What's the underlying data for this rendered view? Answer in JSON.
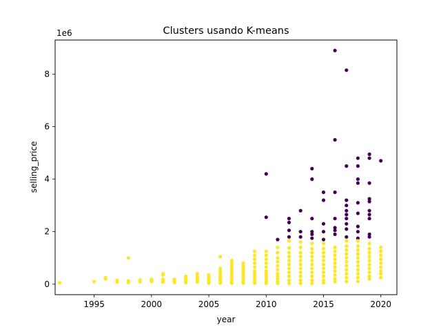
{
  "chart_data": {
    "type": "scatter",
    "title": "Clusters usando K-means",
    "xlabel": "year",
    "ylabel": "selling_price",
    "y_offset_text": "1e6",
    "xlim": [
      1991.6,
      2021.4
    ],
    "ylim": [
      -400000,
      9300000
    ],
    "x_ticks": [
      1995,
      2000,
      2005,
      2010,
      2015,
      2020
    ],
    "y_ticks": [
      0,
      2000000,
      4000000,
      6000000,
      8000000
    ],
    "y_tick_labels": [
      "0",
      "2",
      "4",
      "6",
      "8"
    ],
    "grid": false,
    "series": [
      {
        "color": "#440154",
        "points": [
          [
            2010,
            4200000
          ],
          [
            2010,
            2550000
          ],
          [
            2011,
            1700000
          ],
          [
            2012,
            2500000
          ],
          [
            2012,
            2350000
          ],
          [
            2012,
            2050000
          ],
          [
            2012,
            1800000
          ],
          [
            2013,
            2800000
          ],
          [
            2013,
            2000000
          ],
          [
            2013,
            1800000
          ],
          [
            2014,
            4400000
          ],
          [
            2014,
            4000000
          ],
          [
            2014,
            2500000
          ],
          [
            2014,
            2000000
          ],
          [
            2014,
            1900000
          ],
          [
            2014,
            1750000
          ],
          [
            2015,
            3500000
          ],
          [
            2015,
            3200000
          ],
          [
            2015,
            2300000
          ],
          [
            2015,
            2000000
          ],
          [
            2015,
            1700000
          ],
          [
            2016,
            8900000
          ],
          [
            2016,
            5500000
          ],
          [
            2016,
            3500000
          ],
          [
            2016,
            2500000
          ],
          [
            2016,
            2150000
          ],
          [
            2016,
            2050000
          ],
          [
            2016,
            1900000
          ],
          [
            2017,
            8150000
          ],
          [
            2017,
            4500000
          ],
          [
            2017,
            3200000
          ],
          [
            2017,
            3000000
          ],
          [
            2017,
            2800000
          ],
          [
            2017,
            2650000
          ],
          [
            2017,
            2500000
          ],
          [
            2017,
            2300000
          ],
          [
            2017,
            2100000
          ],
          [
            2017,
            1800000
          ],
          [
            2018,
            4800000
          ],
          [
            2018,
            4500000
          ],
          [
            2018,
            4000000
          ],
          [
            2018,
            3850000
          ],
          [
            2018,
            3100000
          ],
          [
            2018,
            2700000
          ],
          [
            2018,
            2200000
          ],
          [
            2018,
            2000000
          ],
          [
            2018,
            1750000
          ],
          [
            2019,
            4950000
          ],
          [
            2019,
            4800000
          ],
          [
            2019,
            3850000
          ],
          [
            2019,
            3250000
          ],
          [
            2019,
            3150000
          ],
          [
            2019,
            2800000
          ],
          [
            2019,
            2650000
          ],
          [
            2019,
            2500000
          ],
          [
            2019,
            1900000
          ],
          [
            2019,
            1800000
          ],
          [
            2020,
            4700000
          ]
        ]
      },
      {
        "color": "#fde725",
        "points": [
          [
            1992,
            50000
          ],
          [
            1995,
            95000
          ],
          [
            1996,
            250000
          ],
          [
            1996,
            200000
          ],
          [
            1997,
            150000
          ],
          [
            1997,
            80000
          ],
          [
            1998,
            1000000
          ],
          [
            1998,
            120000
          ],
          [
            1998,
            60000
          ],
          [
            1999,
            160000
          ],
          [
            1999,
            90000
          ],
          [
            2000,
            180000
          ],
          [
            2000,
            140000
          ],
          [
            2000,
            100000
          ],
          [
            2001,
            400000
          ],
          [
            2001,
            350000
          ],
          [
            2001,
            180000
          ],
          [
            2001,
            120000
          ],
          [
            2001,
            80000
          ],
          [
            2002,
            180000
          ],
          [
            2002,
            120000
          ],
          [
            2002,
            60000
          ],
          [
            2003,
            300000
          ],
          [
            2003,
            200000
          ],
          [
            2003,
            120000
          ],
          [
            2003,
            60000
          ],
          [
            2004,
            400000
          ],
          [
            2004,
            300000
          ],
          [
            2004,
            220000
          ],
          [
            2004,
            150000
          ],
          [
            2004,
            80000
          ],
          [
            2005,
            350000
          ],
          [
            2005,
            280000
          ],
          [
            2005,
            220000
          ],
          [
            2005,
            160000
          ],
          [
            2005,
            100000
          ],
          [
            2005,
            40000
          ],
          [
            2006,
            1050000
          ],
          [
            2006,
            600000
          ],
          [
            2006,
            500000
          ],
          [
            2006,
            420000
          ],
          [
            2006,
            350000
          ],
          [
            2006,
            280000
          ],
          [
            2006,
            220000
          ],
          [
            2006,
            160000
          ],
          [
            2006,
            100000
          ],
          [
            2006,
            40000
          ],
          [
            2007,
            900000
          ],
          [
            2007,
            800000
          ],
          [
            2007,
            700000
          ],
          [
            2007,
            600000
          ],
          [
            2007,
            500000
          ],
          [
            2007,
            400000
          ],
          [
            2007,
            300000
          ],
          [
            2007,
            200000
          ],
          [
            2007,
            100000
          ],
          [
            2007,
            40000
          ],
          [
            2008,
            800000
          ],
          [
            2008,
            700000
          ],
          [
            2008,
            600000
          ],
          [
            2008,
            500000
          ],
          [
            2008,
            400000
          ],
          [
            2008,
            300000
          ],
          [
            2008,
            200000
          ],
          [
            2008,
            100000
          ],
          [
            2008,
            40000
          ],
          [
            2009,
            1250000
          ],
          [
            2009,
            1100000
          ],
          [
            2009,
            950000
          ],
          [
            2009,
            800000
          ],
          [
            2009,
            650000
          ],
          [
            2009,
            500000
          ],
          [
            2009,
            400000
          ],
          [
            2009,
            300000
          ],
          [
            2009,
            200000
          ],
          [
            2009,
            100000
          ],
          [
            2009,
            40000
          ],
          [
            2010,
            1250000
          ],
          [
            2010,
            1100000
          ],
          [
            2010,
            950000
          ],
          [
            2010,
            800000
          ],
          [
            2010,
            650000
          ],
          [
            2010,
            500000
          ],
          [
            2010,
            400000
          ],
          [
            2010,
            300000
          ],
          [
            2010,
            200000
          ],
          [
            2010,
            100000
          ],
          [
            2010,
            30000
          ],
          [
            2011,
            1400000
          ],
          [
            2011,
            1200000
          ],
          [
            2011,
            1000000
          ],
          [
            2011,
            850000
          ],
          [
            2011,
            700000
          ],
          [
            2011,
            550000
          ],
          [
            2011,
            400000
          ],
          [
            2011,
            300000
          ],
          [
            2011,
            200000
          ],
          [
            2011,
            100000
          ],
          [
            2011,
            30000
          ],
          [
            2012,
            1650000
          ],
          [
            2012,
            1380000
          ],
          [
            2012,
            1200000
          ],
          [
            2012,
            1050000
          ],
          [
            2012,
            900000
          ],
          [
            2012,
            750000
          ],
          [
            2012,
            600000
          ],
          [
            2012,
            450000
          ],
          [
            2012,
            300000
          ],
          [
            2012,
            150000
          ],
          [
            2012,
            30000
          ],
          [
            2013,
            1600000
          ],
          [
            2013,
            1400000
          ],
          [
            2013,
            1200000
          ],
          [
            2013,
            1050000
          ],
          [
            2013,
            900000
          ],
          [
            2013,
            750000
          ],
          [
            2013,
            600000
          ],
          [
            2013,
            450000
          ],
          [
            2013,
            300000
          ],
          [
            2013,
            150000
          ],
          [
            2013,
            30000
          ],
          [
            2014,
            1550000
          ],
          [
            2014,
            1350000
          ],
          [
            2014,
            1200000
          ],
          [
            2014,
            1050000
          ],
          [
            2014,
            900000
          ],
          [
            2014,
            750000
          ],
          [
            2014,
            600000
          ],
          [
            2014,
            450000
          ],
          [
            2014,
            300000
          ],
          [
            2014,
            150000
          ],
          [
            2014,
            30000
          ],
          [
            2015,
            1550000
          ],
          [
            2015,
            1350000
          ],
          [
            2015,
            1200000
          ],
          [
            2015,
            1050000
          ],
          [
            2015,
            900000
          ],
          [
            2015,
            750000
          ],
          [
            2015,
            600000
          ],
          [
            2015,
            450000
          ],
          [
            2015,
            300000
          ],
          [
            2015,
            150000
          ],
          [
            2015,
            50000
          ],
          [
            2016,
            1400000
          ],
          [
            2016,
            1250000
          ],
          [
            2016,
            1100000
          ],
          [
            2016,
            950000
          ],
          [
            2016,
            800000
          ],
          [
            2016,
            650000
          ],
          [
            2016,
            500000
          ],
          [
            2016,
            350000
          ],
          [
            2016,
            200000
          ],
          [
            2016,
            100000
          ],
          [
            2017,
            1650000
          ],
          [
            2017,
            1450000
          ],
          [
            2017,
            1300000
          ],
          [
            2017,
            1150000
          ],
          [
            2017,
            1000000
          ],
          [
            2017,
            850000
          ],
          [
            2017,
            700000
          ],
          [
            2017,
            550000
          ],
          [
            2017,
            400000
          ],
          [
            2017,
            250000
          ],
          [
            2017,
            100000
          ],
          [
            2018,
            1650000
          ],
          [
            2018,
            1450000
          ],
          [
            2018,
            1300000
          ],
          [
            2018,
            1150000
          ],
          [
            2018,
            1000000
          ],
          [
            2018,
            850000
          ],
          [
            2018,
            700000
          ],
          [
            2018,
            550000
          ],
          [
            2018,
            400000
          ],
          [
            2018,
            250000
          ],
          [
            2018,
            100000
          ],
          [
            2019,
            1550000
          ],
          [
            2019,
            1350000
          ],
          [
            2019,
            1200000
          ],
          [
            2019,
            1050000
          ],
          [
            2019,
            900000
          ],
          [
            2019,
            750000
          ],
          [
            2019,
            600000
          ],
          [
            2019,
            450000
          ],
          [
            2019,
            300000
          ],
          [
            2019,
            200000
          ],
          [
            2020,
            1400000
          ],
          [
            2020,
            1250000
          ],
          [
            2020,
            1100000
          ],
          [
            2020,
            950000
          ],
          [
            2020,
            800000
          ],
          [
            2020,
            650000
          ],
          [
            2020,
            500000
          ],
          [
            2020,
            400000
          ],
          [
            2020,
            250000
          ]
        ]
      }
    ]
  }
}
